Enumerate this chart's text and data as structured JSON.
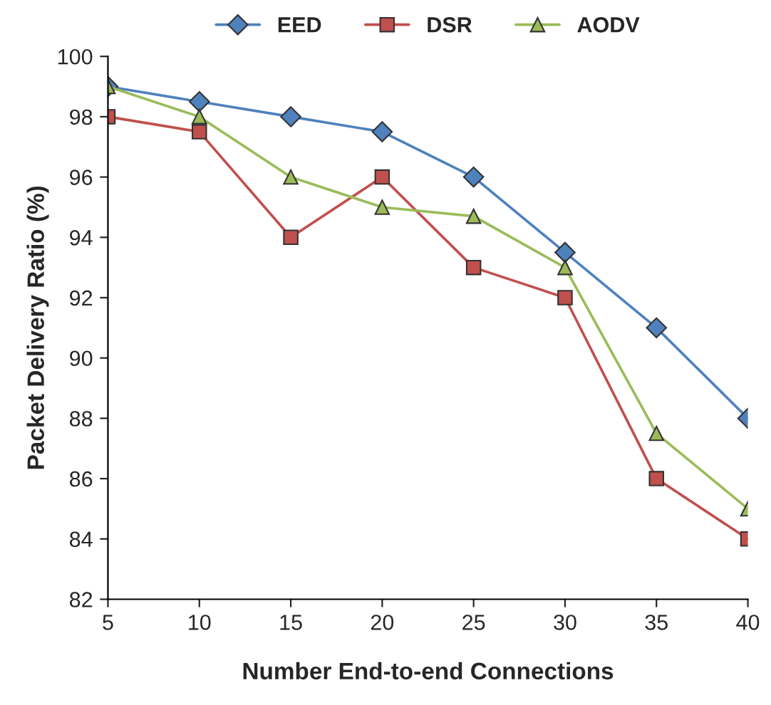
{
  "chart_data": {
    "type": "line",
    "xlabel": "Number End-to-end Connections",
    "ylabel": "Packet Delivery Ratio (%)",
    "x": [
      5,
      10,
      15,
      20,
      25,
      30,
      35,
      40
    ],
    "series": [
      {
        "name": "EED",
        "color": "#4f81bd",
        "marker": "diamond",
        "values": [
          99,
          98.5,
          98,
          97.5,
          96,
          93.5,
          91,
          88
        ]
      },
      {
        "name": "DSR",
        "color": "#c0504d",
        "marker": "square",
        "values": [
          98,
          97.5,
          94,
          96,
          93,
          92,
          86,
          84
        ]
      },
      {
        "name": "AODV",
        "color": "#9bbb59",
        "marker": "triangle",
        "values": [
          99,
          98,
          96,
          95,
          94.7,
          93,
          87.5,
          85
        ]
      }
    ],
    "xlim": [
      5,
      40
    ],
    "xticks": [
      5,
      10,
      15,
      20,
      25,
      30,
      35,
      40
    ],
    "ylim": [
      82,
      100
    ],
    "yticks": [
      82,
      84,
      86,
      88,
      90,
      92,
      94,
      96,
      98,
      100
    ],
    "grid": false,
    "legend": "top",
    "line_style": "solid"
  }
}
